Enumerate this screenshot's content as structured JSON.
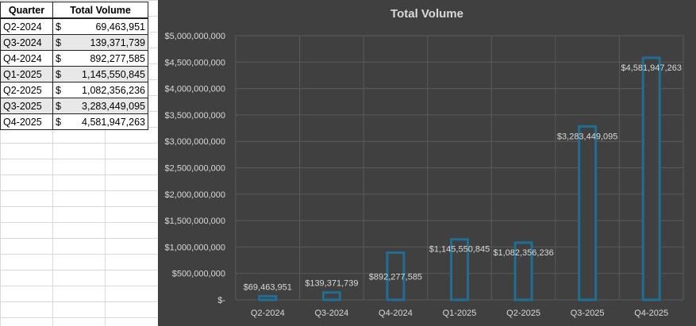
{
  "table": {
    "headers": [
      "Quarter",
      "Total Volume"
    ],
    "currency_symbol": "$",
    "rows": [
      {
        "quarter": "Q2-2024",
        "value": "69,463,951"
      },
      {
        "quarter": "Q3-2024",
        "value": "139,371,739"
      },
      {
        "quarter": "Q4-2024",
        "value": "892,277,585"
      },
      {
        "quarter": "Q1-2025",
        "value": "1,145,550,845"
      },
      {
        "quarter": "Q2-2025",
        "value": "1,082,356,236"
      },
      {
        "quarter": "Q3-2025",
        "value": "3,283,449,095"
      },
      {
        "quarter": "Q4-2025",
        "value": "4,581,947,263"
      }
    ]
  },
  "chart_data": {
    "type": "bar",
    "title": "Total Volume",
    "categories": [
      "Q2-2024",
      "Q3-2024",
      "Q4-2024",
      "Q1-2025",
      "Q2-2025",
      "Q3-2025",
      "Q4-2025"
    ],
    "values": [
      69463951,
      139371739,
      892277585,
      1145550845,
      1082356236,
      3283449095,
      4581947263
    ],
    "data_labels": [
      "$69,463,951",
      "$139,371,739",
      "$892,277,585",
      "$1,145,550,845",
      "$1,082,356,236",
      "$3,283,449,095",
      "$4,581,947,263"
    ],
    "ylim": [
      0,
      5000000000
    ],
    "y_tick_values": [
      0,
      500000000,
      1000000000,
      1500000000,
      2000000000,
      2500000000,
      3000000000,
      3500000000,
      4000000000,
      4500000000,
      5000000000
    ],
    "y_ticks": [
      "$-",
      "$500,000,000",
      "$1,000,000,000",
      "$1,500,000,000",
      "$2,000,000,000",
      "$2,500,000,000",
      "$3,000,000,000",
      "$3,500,000,000",
      "$4,000,000,000",
      "$4,500,000,000",
      "$5,000,000,000"
    ],
    "xlabel": "",
    "ylabel": "",
    "grid": true,
    "legend": "none"
  },
  "colors": {
    "chart_bg": "#404040",
    "grid": "#5a5a5a",
    "bar_outline": "#1f6e93",
    "bar_fill": "#404040",
    "text": "#d9d9d9"
  }
}
